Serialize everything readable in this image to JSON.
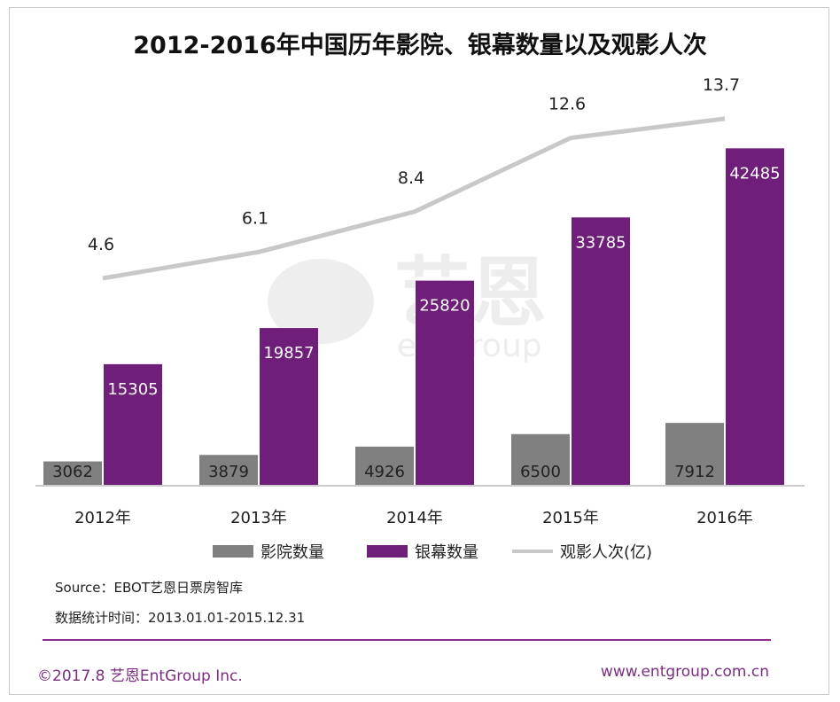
{
  "chart_data": {
    "type": "bar+line",
    "title": "2012-2016年中国历年影院、银幕数量以及观影人次",
    "categories": [
      "2012年",
      "2013年",
      "2014年",
      "2015年",
      "2016年"
    ],
    "series": [
      {
        "name": "影院数量",
        "type": "bar",
        "color": "#808080",
        "values": [
          3062,
          3879,
          4926,
          6500,
          7912
        ]
      },
      {
        "name": "银幕数量",
        "type": "bar",
        "color": "#6f1f79",
        "values": [
          15305,
          19857,
          25820,
          33785,
          42485
        ]
      },
      {
        "name": "观影人次(亿)",
        "type": "line",
        "color": "#c8c8c8",
        "values": [
          4.6,
          6.1,
          8.4,
          12.6,
          13.7
        ]
      }
    ],
    "bar_labels": {
      "影院数量": [
        "3062",
        "3879",
        "4926",
        "6500",
        "7912"
      ],
      "银幕数量": [
        "15305",
        "19857",
        "25820",
        "33785",
        "42485"
      ]
    },
    "line_labels": [
      "4.6",
      "6.1",
      "8.4",
      "12.6",
      "13.7"
    ],
    "bar_ylim": [
      0,
      50000
    ],
    "line_ylim": [
      0,
      20
    ],
    "legend_position": "bottom"
  },
  "watermark": {
    "cn": "艺恩",
    "en": "entgroup"
  },
  "source_text": "Source：EBOT艺恩日票房智库",
  "stat_period": "数据统计时间：2013.01.01-2015.12.31",
  "footer_left": "©2017.8 艺恩EntGroup Inc.",
  "footer_right": "www.entgroup.com.cn"
}
